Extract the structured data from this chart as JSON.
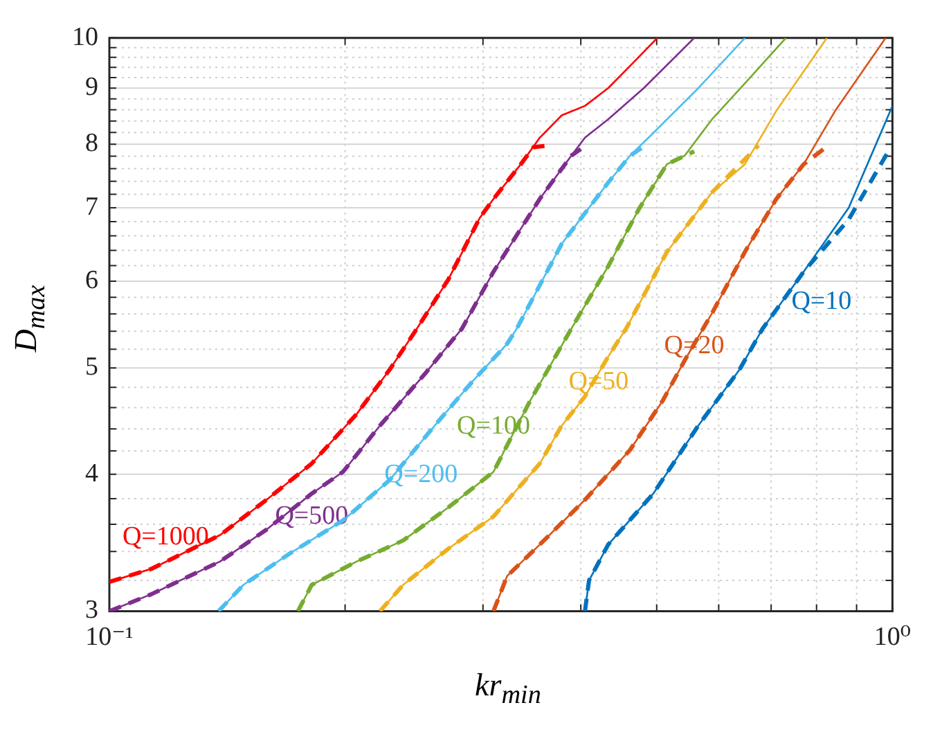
{
  "chart_data": {
    "type": "line",
    "xlabel": "kr$_{min}$",
    "ylabel": "D$_{max}$",
    "log": "xy",
    "grid": true,
    "legend": false,
    "marker": "none",
    "xlim": [
      0.1,
      1
    ],
    "ylim": [
      3,
      10
    ],
    "xticks": [
      {
        "value": 0.1,
        "label": "10⁻¹"
      },
      {
        "value": 0.2,
        "label": null
      },
      {
        "value": 0.3,
        "label": null
      },
      {
        "value": 0.4,
        "label": null
      },
      {
        "value": 0.5,
        "label": null
      },
      {
        "value": 0.6,
        "label": null
      },
      {
        "value": 0.7,
        "label": null
      },
      {
        "value": 0.8,
        "label": null
      },
      {
        "value": 0.9,
        "label": null
      },
      {
        "value": 1,
        "label": "10⁰"
      }
    ],
    "yticks": [
      3,
      {
        "value": 3.2,
        "label": null
      },
      {
        "value": 3.4,
        "label": null
      },
      {
        "value": 3.6,
        "label": null
      },
      {
        "value": 3.8,
        "label": null
      },
      4,
      {
        "value": 4.2,
        "label": null
      },
      {
        "value": 4.4,
        "label": null
      },
      {
        "value": 4.6,
        "label": null
      },
      {
        "value": 4.8,
        "label": null
      },
      5,
      {
        "value": 5.2,
        "label": null
      },
      {
        "value": 5.4,
        "label": null
      },
      {
        "value": 5.6,
        "label": null
      },
      {
        "value": 5.8,
        "label": null
      },
      6,
      {
        "value": 6.2,
        "label": null
      },
      {
        "value": 6.4,
        "label": null
      },
      {
        "value": 6.6,
        "label": null
      },
      {
        "value": 6.8,
        "label": null
      },
      7,
      {
        "value": 7.2,
        "label": null
      },
      {
        "value": 7.4,
        "label": null
      },
      {
        "value": 7.6,
        "label": null
      },
      {
        "value": 7.8,
        "label": null
      },
      8,
      {
        "value": 8.2,
        "label": null
      },
      {
        "value": 8.4,
        "label": null
      },
      {
        "value": 8.6,
        "label": null
      },
      {
        "value": 8.8,
        "label": null
      },
      9,
      {
        "value": 9.2,
        "label": null
      },
      {
        "value": 9.4,
        "label": null
      },
      {
        "value": 9.6,
        "label": null
      },
      {
        "value": 9.8,
        "label": null
      },
      10
    ],
    "series": [
      {
        "name": "Q=1000",
        "color": "#ff0000",
        "line_style": "solid",
        "x": [
          0.1,
          0.1133,
          0.1385,
          0.1587,
          0.1813,
          0.207,
          0.2279,
          0.247,
          0.2709,
          0.2971,
          0.3094,
          0.3353,
          0.3545,
          0.3782,
          0.4049,
          0.4335,
          0.4624,
          0.5009
        ],
        "values": [
          3.19,
          3.28,
          3.52,
          3.79,
          4.09,
          4.54,
          4.98,
          5.43,
          6.02,
          6.85,
          7.13,
          7.67,
          8.11,
          8.5,
          8.67,
          9.0,
          9.43,
          10
        ]
      },
      {
        "color": "#ff0000",
        "line_style": "dashed",
        "x": [
          0.1,
          0.1133,
          0.1385,
          0.1587,
          0.1813,
          0.207,
          0.2279,
          0.247,
          0.2709,
          0.2971,
          0.3094,
          0.3353,
          0.348,
          0.365
        ],
        "values": [
          3.19,
          3.28,
          3.52,
          3.79,
          4.09,
          4.54,
          4.98,
          5.43,
          6.02,
          6.85,
          7.13,
          7.67,
          7.95,
          7.98
        ]
      },
      {
        "name": "Q=500",
        "color": "#7e2f8e",
        "line_style": "solid",
        "x": [
          0.1,
          0.1133,
          0.1385,
          0.1587,
          0.1813,
          0.1988,
          0.2216,
          0.253,
          0.2742,
          0.282,
          0.3094,
          0.3545,
          0.389,
          0.4049,
          0.4335,
          0.4813,
          0.5583
        ],
        "values": [
          3,
          3.11,
          3.33,
          3.56,
          3.84,
          4.02,
          4.43,
          4.94,
          5.3,
          5.43,
          6.12,
          7.13,
          7.81,
          8.11,
          8.43,
          9.0,
          10
        ]
      },
      {
        "color": "#7e2f8e",
        "line_style": "dashed",
        "x": [
          0.1,
          0.1133,
          0.1385,
          0.1587,
          0.1813,
          0.1988,
          0.2216,
          0.253,
          0.2742,
          0.282,
          0.3094,
          0.3545,
          0.389,
          0.4
        ],
        "values": [
          3,
          3.11,
          3.33,
          3.56,
          3.84,
          4.02,
          4.43,
          4.94,
          5.3,
          5.43,
          6.12,
          7.13,
          7.81,
          7.92
        ]
      },
      {
        "name": "Q=200",
        "color": "#4dbeee",
        "line_style": "solid",
        "x": [
          0.1379,
          0.1483,
          0.1693,
          0.1988,
          0.2279,
          0.2603,
          0.2901,
          0.3221,
          0.3313,
          0.3782,
          0.4335,
          0.4624,
          0.495,
          0.5651,
          0.648
        ],
        "values": [
          3,
          3.17,
          3.38,
          3.63,
          3.95,
          4.43,
          4.85,
          5.26,
          5.43,
          6.49,
          7.38,
          7.81,
          8.19,
          9.0,
          10
        ]
      },
      {
        "color": "#4dbeee",
        "line_style": "dashed",
        "x": [
          0.1379,
          0.1483,
          0.1693,
          0.1988,
          0.2279,
          0.2603,
          0.2901,
          0.3221,
          0.3313,
          0.3782,
          0.4335,
          0.4624,
          0.4813
        ],
        "values": [
          3,
          3.17,
          3.38,
          3.63,
          3.95,
          4.43,
          4.85,
          5.26,
          5.43,
          6.49,
          7.38,
          7.81,
          7.96
        ]
      },
      {
        "name": "Q=100",
        "color": "#77ac30",
        "line_style": "solid",
        "x": [
          0.1741,
          0.1813,
          0.207,
          0.2372,
          0.2709,
          0.3094,
          0.3448,
          0.389,
          0.4335,
          0.4755,
          0.5152,
          0.5429,
          0.5884,
          0.648,
          0.731
        ],
        "values": [
          3,
          3.17,
          3.33,
          3.48,
          3.73,
          4.02,
          4.67,
          5.43,
          6.19,
          7.0,
          7.67,
          7.81,
          8.43,
          9.09,
          10
        ]
      },
      {
        "color": "#77ac30",
        "line_style": "dashed",
        "x": [
          0.1741,
          0.1813,
          0.207,
          0.2372,
          0.2709,
          0.3094,
          0.3448,
          0.389,
          0.4335,
          0.4755,
          0.5152,
          0.5583
        ],
        "values": [
          3,
          3.17,
          3.33,
          3.48,
          3.73,
          4.02,
          4.67,
          5.43,
          6.19,
          7.0,
          7.67,
          7.88
        ]
      },
      {
        "name": "Q=50",
        "color": "#edb120",
        "line_style": "solid",
        "x": [
          0.2216,
          0.2372,
          0.2709,
          0.3094,
          0.3545,
          0.3782,
          0.4049,
          0.4335,
          0.4569,
          0.5152,
          0.5884,
          0.648,
          0.7107,
          0.8248
        ],
        "values": [
          3,
          3.17,
          3.42,
          3.66,
          4.09,
          4.43,
          4.71,
          5.12,
          5.43,
          6.38,
          7.23,
          7.67,
          8.58,
          10
        ]
      },
      {
        "color": "#edb120",
        "line_style": "dashed",
        "x": [
          0.2216,
          0.2372,
          0.2709,
          0.3094,
          0.3545,
          0.3782,
          0.4049,
          0.4335,
          0.4569,
          0.5152,
          0.5884,
          0.6745
        ],
        "values": [
          3,
          3.17,
          3.42,
          3.66,
          4.09,
          4.43,
          4.71,
          5.12,
          5.43,
          6.38,
          7.23,
          7.98
        ]
      },
      {
        "name": "Q=20",
        "color": "#d95319",
        "line_style": "solid",
        "x": [
          0.3094,
          0.3221,
          0.3545,
          0.4049,
          0.4624,
          0.5091,
          0.5429,
          0.5884,
          0.648,
          0.7107,
          0.7703,
          0.845,
          0.9802
        ],
        "values": [
          3,
          3.23,
          3.45,
          3.79,
          4.21,
          4.67,
          5.08,
          5.61,
          6.38,
          7.13,
          7.67,
          8.58,
          10
        ]
      },
      {
        "color": "#d95319",
        "line_style": "dashed",
        "x": [
          0.3094,
          0.3221,
          0.3545,
          0.4049,
          0.4624,
          0.5091,
          0.5429,
          0.5884,
          0.648,
          0.7107,
          0.7703,
          0.8248
        ],
        "values": [
          3,
          3.23,
          3.45,
          3.79,
          4.21,
          4.67,
          5.08,
          5.61,
          6.38,
          7.13,
          7.67,
          7.96
        ]
      },
      {
        "name": "Q=10",
        "color": "#0072bd",
        "line_style": "solid",
        "x": [
          0.4049,
          0.4098,
          0.4335,
          0.495,
          0.5651,
          0.6376,
          0.6827,
          0.7703,
          0.8794,
          1.0
        ],
        "values": [
          3,
          3.2,
          3.45,
          3.84,
          4.43,
          4.98,
          5.43,
          6.12,
          7.0,
          8.67
        ]
      },
      {
        "color": "#0072bd",
        "line_style": "dashed",
        "x": [
          0.4049,
          0.4098,
          0.4335,
          0.495,
          0.5651,
          0.6376,
          0.6827,
          0.7703,
          0.8794,
          0.9881
        ],
        "values": [
          3,
          3.2,
          3.45,
          3.84,
          4.43,
          4.98,
          5.43,
          6.12,
          6.83,
          7.88
        ]
      }
    ]
  }
}
